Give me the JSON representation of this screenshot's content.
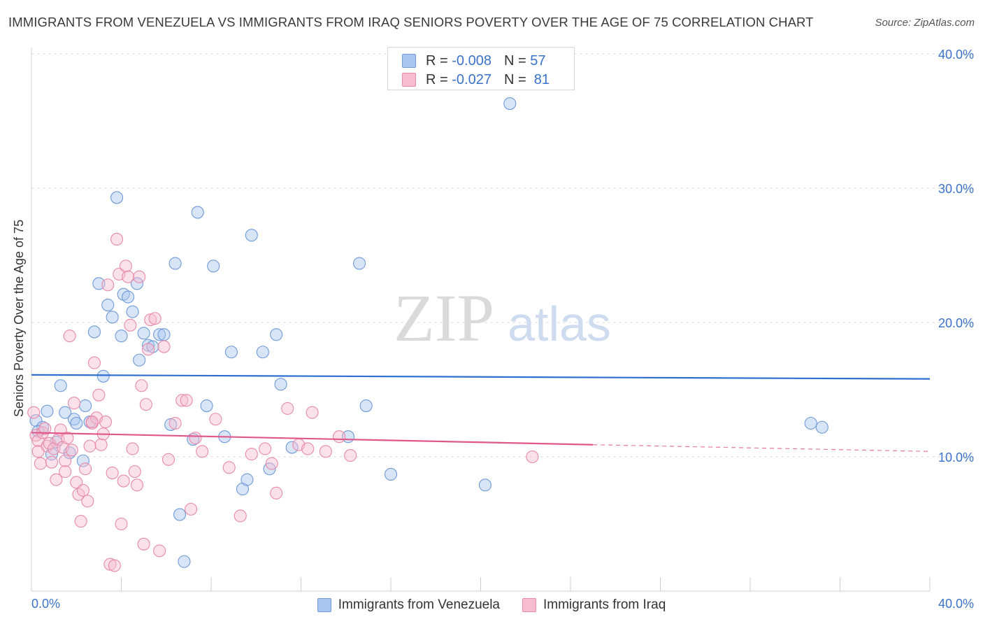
{
  "title": "IMMIGRANTS FROM VENEZUELA VS IMMIGRANTS FROM IRAQ SENIORS POVERTY OVER THE AGE OF 75 CORRELATION CHART",
  "source": "Source: ZipAtlas.com",
  "watermark": {
    "zip": "ZIP",
    "atlas": "atlas"
  },
  "stats": [
    {
      "r_label": "R =",
      "r_value": "-0.008",
      "n_label": "N =",
      "n_value": "57",
      "color": "#a9c6ee",
      "border": "#6f9ad8"
    },
    {
      "r_label": "R =",
      "r_value": "-0.027",
      "n_label": "N =",
      "n_value": "81",
      "color": "#f7bcd0",
      "border": "#e88aaa"
    }
  ],
  "legend": [
    {
      "label": "Immigrants from Venezuela",
      "color": "#a9c6ee",
      "border": "#6f9ad8"
    },
    {
      "label": "Immigrants from Iraq",
      "color": "#f7bcd0",
      "border": "#e88aaa"
    }
  ],
  "chart_data": {
    "type": "scatter",
    "title": "IMMIGRANTS FROM VENEZUELA VS IMMIGRANTS FROM IRAQ SENIORS POVERTY OVER THE AGE OF 75 CORRELATION CHART",
    "xlabel": "",
    "ylabel": "Seniors Poverty Over the Age of 75",
    "xlim": [
      0,
      40
    ],
    "ylim": [
      0,
      40
    ],
    "x_tick_labels": [
      "0.0%",
      "40.0%"
    ],
    "y_ticks": [
      10,
      20,
      30,
      40
    ],
    "y_tick_labels": [
      "10.0%",
      "20.0%",
      "30.0%",
      "40.0%"
    ],
    "grid": true,
    "series": [
      {
        "name": "Immigrants from Venezuela",
        "color": "#6f9ad8",
        "fill": "#a9c6ee",
        "trend": {
          "x": [
            0,
            40
          ],
          "y": [
            16.1,
            15.8
          ],
          "color": "#2f6fd1"
        },
        "points": [
          [
            0.2,
            12.7
          ],
          [
            0.5,
            12.2
          ],
          [
            0.7,
            13.4
          ],
          [
            0.9,
            10.2
          ],
          [
            1.1,
            11.1
          ],
          [
            1.3,
            15.3
          ],
          [
            1.5,
            13.3
          ],
          [
            1.7,
            10.3
          ],
          [
            1.9,
            12.8
          ],
          [
            2.0,
            12.5
          ],
          [
            2.3,
            9.7
          ],
          [
            2.4,
            13.8
          ],
          [
            2.6,
            12.6
          ],
          [
            2.8,
            19.3
          ],
          [
            3.0,
            22.9
          ],
          [
            3.2,
            16.0
          ],
          [
            3.4,
            21.3
          ],
          [
            3.6,
            20.4
          ],
          [
            3.8,
            29.3
          ],
          [
            4.0,
            19.0
          ],
          [
            4.1,
            22.1
          ],
          [
            4.3,
            21.9
          ],
          [
            4.5,
            20.8
          ],
          [
            4.7,
            22.9
          ],
          [
            4.8,
            17.2
          ],
          [
            5.0,
            19.2
          ],
          [
            5.2,
            18.3
          ],
          [
            5.4,
            18.2
          ],
          [
            5.7,
            19.1
          ],
          [
            5.9,
            19.1
          ],
          [
            6.2,
            12.4
          ],
          [
            6.4,
            24.4
          ],
          [
            6.6,
            5.7
          ],
          [
            6.8,
            2.2
          ],
          [
            7.2,
            11.3
          ],
          [
            7.4,
            28.2
          ],
          [
            7.8,
            13.8
          ],
          [
            8.1,
            24.2
          ],
          [
            8.6,
            11.5
          ],
          [
            8.9,
            17.8
          ],
          [
            9.4,
            7.6
          ],
          [
            9.6,
            8.3
          ],
          [
            9.8,
            26.5
          ],
          [
            10.3,
            17.8
          ],
          [
            10.6,
            9.1
          ],
          [
            10.9,
            19.1
          ],
          [
            11.1,
            15.4
          ],
          [
            11.6,
            10.7
          ],
          [
            14.1,
            11.5
          ],
          [
            14.6,
            24.4
          ],
          [
            14.9,
            13.8
          ],
          [
            16.0,
            8.7
          ],
          [
            20.2,
            7.9
          ],
          [
            21.3,
            36.3
          ],
          [
            34.7,
            12.5
          ],
          [
            35.2,
            12.2
          ],
          [
            0.3,
            11.9
          ]
        ]
      },
      {
        "name": "Immigrants from Iraq",
        "color": "#e88aaa",
        "fill": "#f7bcd0",
        "trend": {
          "x": [
            0,
            25
          ],
          "y": [
            11.8,
            10.9
          ],
          "color": "#e0588a",
          "dashed_to": [
            40,
            10.4
          ]
        },
        "points": [
          [
            0.1,
            13.3
          ],
          [
            0.2,
            11.6
          ],
          [
            0.3,
            11.2
          ],
          [
            0.3,
            10.4
          ],
          [
            0.4,
            9.5
          ],
          [
            0.5,
            11.8
          ],
          [
            0.6,
            12.1
          ],
          [
            0.7,
            10.8
          ],
          [
            0.8,
            11.0
          ],
          [
            0.9,
            9.6
          ],
          [
            1.0,
            10.6
          ],
          [
            1.1,
            8.3
          ],
          [
            1.2,
            11.3
          ],
          [
            1.3,
            12.0
          ],
          [
            1.4,
            10.7
          ],
          [
            1.5,
            9.7
          ],
          [
            1.5,
            8.9
          ],
          [
            1.6,
            11.4
          ],
          [
            1.7,
            19.0
          ],
          [
            1.8,
            10.5
          ],
          [
            1.9,
            14.0
          ],
          [
            2.0,
            8.1
          ],
          [
            2.1,
            7.2
          ],
          [
            2.2,
            5.2
          ],
          [
            2.3,
            7.5
          ],
          [
            2.4,
            9.1
          ],
          [
            2.5,
            6.7
          ],
          [
            2.6,
            10.8
          ],
          [
            2.7,
            12.5
          ],
          [
            2.8,
            17.0
          ],
          [
            2.9,
            12.9
          ],
          [
            3.0,
            14.6
          ],
          [
            3.1,
            10.9
          ],
          [
            3.2,
            11.7
          ],
          [
            3.3,
            12.6
          ],
          [
            3.4,
            22.8
          ],
          [
            3.5,
            2.0
          ],
          [
            3.6,
            8.8
          ],
          [
            3.7,
            1.9
          ],
          [
            3.8,
            26.2
          ],
          [
            3.9,
            23.6
          ],
          [
            4.0,
            5.0
          ],
          [
            4.1,
            8.2
          ],
          [
            4.2,
            24.2
          ],
          [
            4.3,
            23.4
          ],
          [
            4.4,
            19.8
          ],
          [
            4.5,
            10.6
          ],
          [
            4.6,
            8.9
          ],
          [
            4.7,
            7.9
          ],
          [
            4.8,
            23.4
          ],
          [
            4.9,
            15.3
          ],
          [
            5.0,
            3.5
          ],
          [
            5.1,
            13.9
          ],
          [
            5.2,
            18.0
          ],
          [
            5.3,
            20.2
          ],
          [
            5.5,
            20.3
          ],
          [
            5.7,
            3.0
          ],
          [
            5.9,
            18.2
          ],
          [
            6.1,
            9.8
          ],
          [
            6.4,
            12.5
          ],
          [
            6.7,
            14.2
          ],
          [
            6.9,
            14.2
          ],
          [
            7.1,
            6.1
          ],
          [
            7.3,
            11.4
          ],
          [
            7.6,
            10.4
          ],
          [
            8.2,
            12.8
          ],
          [
            8.8,
            9.2
          ],
          [
            9.3,
            5.6
          ],
          [
            9.8,
            10.2
          ],
          [
            10.4,
            10.6
          ],
          [
            10.7,
            9.5
          ],
          [
            10.9,
            7.3
          ],
          [
            11.4,
            13.6
          ],
          [
            11.9,
            10.9
          ],
          [
            12.3,
            10.6
          ],
          [
            12.5,
            13.3
          ],
          [
            13.1,
            10.4
          ],
          [
            13.7,
            11.5
          ],
          [
            14.2,
            10.1
          ],
          [
            22.3,
            10.0
          ],
          [
            2.7,
            12.6
          ]
        ]
      }
    ]
  }
}
